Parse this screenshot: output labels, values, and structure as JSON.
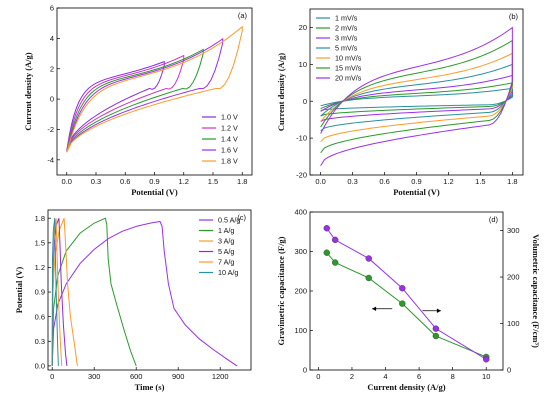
{
  "colors": {
    "purple": "#9b30e8",
    "green": "#2a9a2a",
    "orange": "#ff9a2a",
    "violet": "#8a2be2",
    "teal": "#2a8fa0",
    "magenta": "#cc33cc"
  },
  "chart_data": [
    {
      "panel": "a",
      "type": "line",
      "panel_label": "(a)",
      "xlabel": "Potential (V)",
      "ylabel": "Current density (A/g)",
      "xlim": [
        -0.1,
        1.9
      ],
      "ylim": [
        -5,
        6
      ],
      "xticks": [
        0.0,
        0.3,
        0.6,
        0.9,
        1.2,
        1.5,
        1.8
      ],
      "xtick_labels": [
        "0.0",
        "0.3",
        "0.6",
        "0.9",
        "1.2",
        "1.5",
        "1.8"
      ],
      "yticks": [
        -4,
        -2,
        0,
        2,
        4,
        6
      ],
      "ytick_labels": [
        "-4",
        "-2",
        "0",
        "2",
        "4",
        "6"
      ],
      "legend_position": "bottom-right",
      "series": [
        {
          "name": "1.0 V",
          "color": "#8a2be2",
          "vmax": 1.0,
          "imax": 2.6,
          "imin": -3.4
        },
        {
          "name": "1.2 V",
          "color": "#cc33cc",
          "vmax": 1.2,
          "imax": 3.0,
          "imin": -3.4
        },
        {
          "name": "1.4 V",
          "color": "#2a9a2a",
          "vmax": 1.4,
          "imax": 3.4,
          "imin": -3.45
        },
        {
          "name": "1.6 V",
          "color": "#9b30e8",
          "vmax": 1.6,
          "imax": 4.1,
          "imin": -3.5
        },
        {
          "name": "1.8 V",
          "color": "#ff9a2a",
          "vmax": 1.8,
          "imax": 4.9,
          "imin": -3.5
        }
      ]
    },
    {
      "panel": "b",
      "type": "line",
      "panel_label": "(b)",
      "xlabel": "Potential (V)",
      "ylabel": "Current density (A/g)",
      "xlim": [
        -0.1,
        1.9
      ],
      "ylim": [
        -20,
        25
      ],
      "xticks": [
        0.0,
        0.3,
        0.6,
        0.9,
        1.2,
        1.5,
        1.8
      ],
      "xtick_labels": [
        "0.0",
        "0.3",
        "0.6",
        "0.9",
        "1.2",
        "1.5",
        "1.8"
      ],
      "yticks": [
        -20,
        -10,
        0,
        10,
        20
      ],
      "ytick_labels": [
        "-20",
        "-10",
        "0",
        "10",
        "20"
      ],
      "legend_position": "top-left",
      "series": [
        {
          "name": "1 mV/s",
          "color": "#2a8fa0",
          "imax": 3.5,
          "imin": -2.5,
          "mid_upper": 1.2,
          "mid_lower": -1.2
        },
        {
          "name": "2 mV/s",
          "color": "#2a9a2a",
          "imax": 5.0,
          "imin": -4.0,
          "mid_upper": 1.8,
          "mid_lower": -1.8
        },
        {
          "name": "3 mV/s",
          "color": "#9b30e8",
          "imax": 7.0,
          "imin": -5.5,
          "mid_upper": 2.6,
          "mid_lower": -2.6
        },
        {
          "name": "5 mV/s",
          "color": "#2a8fa0",
          "imax": 10.0,
          "imin": -8.0,
          "mid_upper": 3.8,
          "mid_lower": -3.8
        },
        {
          "name": "10 mV/s",
          "color": "#ff9a2a",
          "imax": 13.0,
          "imin": -11.0,
          "mid_upper": 5.0,
          "mid_lower": -5.0
        },
        {
          "name": "15 mV/s",
          "color": "#2a9a2a",
          "imax": 16.5,
          "imin": -14.0,
          "mid_upper": 6.5,
          "mid_lower": -6.5
        },
        {
          "name": "20 mV/s",
          "color": "#9b30e8",
          "imax": 20.0,
          "imin": -17.5,
          "mid_upper": 8.0,
          "mid_lower": -8.0
        }
      ]
    },
    {
      "panel": "c",
      "type": "line",
      "panel_label": "(c)",
      "xlabel": "Time (s)",
      "ylabel": "Potential (V)",
      "xlim": [
        -30,
        1420
      ],
      "ylim": [
        -0.05,
        1.9
      ],
      "xticks": [
        0,
        300,
        600,
        900,
        1200
      ],
      "xtick_labels": [
        "0",
        "300",
        "600",
        "900",
        "1200"
      ],
      "yticks": [
        0.0,
        0.3,
        0.6,
        0.9,
        1.2,
        1.5,
        1.8
      ],
      "ytick_labels": [
        "0.0",
        "0.3",
        "0.6",
        "0.9",
        "1.2",
        "1.5",
        "1.8"
      ],
      "legend_position": "top-right",
      "series": [
        {
          "name": "0.5 A/g",
          "color": "#9b30e8",
          "points": [
            [
              0,
              0
            ],
            [
              10,
              0.45
            ],
            [
              40,
              0.75
            ],
            [
              100,
              1.0
            ],
            [
              200,
              1.25
            ],
            [
              300,
              1.42
            ],
            [
              400,
              1.55
            ],
            [
              500,
              1.64
            ],
            [
              600,
              1.7
            ],
            [
              700,
              1.74
            ],
            [
              770,
              1.76
            ],
            [
              785,
              1.7
            ],
            [
              800,
              1.4
            ],
            [
              830,
              1.0
            ],
            [
              870,
              0.7
            ],
            [
              950,
              0.5
            ],
            [
              1050,
              0.33
            ],
            [
              1150,
              0.2
            ],
            [
              1250,
              0.08
            ],
            [
              1320,
              0
            ]
          ]
        },
        {
          "name": "1 A/g",
          "color": "#2a9a2a",
          "points": [
            [
              0,
              0
            ],
            [
              10,
              0.7
            ],
            [
              40,
              1.1
            ],
            [
              100,
              1.4
            ],
            [
              200,
              1.62
            ],
            [
              300,
              1.74
            ],
            [
              380,
              1.8
            ],
            [
              390,
              1.72
            ],
            [
              400,
              1.3
            ],
            [
              420,
              1.0
            ],
            [
              460,
              0.75
            ],
            [
              520,
              0.4
            ],
            [
              560,
              0.18
            ],
            [
              600,
              0
            ]
          ]
        },
        {
          "name": "3 A/g",
          "color": "#ff9a2a",
          "points": [
            [
              0,
              0
            ],
            [
              5,
              0.9
            ],
            [
              20,
              1.35
            ],
            [
              50,
              1.65
            ],
            [
              85,
              1.8
            ],
            [
              95,
              1.5
            ],
            [
              110,
              1.0
            ],
            [
              130,
              0.6
            ],
            [
              160,
              0.25
            ],
            [
              180,
              0
            ]
          ]
        },
        {
          "name": "5 A/g",
          "color": "#8a2be2",
          "points": [
            [
              0,
              0
            ],
            [
              4,
              1.1
            ],
            [
              15,
              1.5
            ],
            [
              30,
              1.72
            ],
            [
              48,
              1.8
            ],
            [
              55,
              1.5
            ],
            [
              65,
              1.0
            ],
            [
              80,
              0.5
            ],
            [
              95,
              0.15
            ],
            [
              105,
              0
            ]
          ]
        },
        {
          "name": "7 A/g",
          "color": "#ff9a2a",
          "points": [
            [
              0,
              0
            ],
            [
              3,
              1.2
            ],
            [
              12,
              1.6
            ],
            [
              28,
              1.8
            ],
            [
              34,
              1.4
            ],
            [
              45,
              0.8
            ],
            [
              58,
              0.3
            ],
            [
              68,
              0
            ]
          ]
        },
        {
          "name": "10 A/g",
          "color": "#2a8fa0",
          "points": [
            [
              0,
              0
            ],
            [
              2,
              1.3
            ],
            [
              8,
              1.65
            ],
            [
              18,
              1.8
            ],
            [
              22,
              1.4
            ],
            [
              30,
              0.8
            ],
            [
              38,
              0.3
            ],
            [
              44,
              0
            ]
          ]
        }
      ]
    },
    {
      "panel": "d",
      "type": "scatter",
      "panel_label": "(d)",
      "xlabel": "Current density (A/g)",
      "ylabel": "Gravimetric capacitance (F/g)",
      "y2label": "Volumetric capacitance (F/cm³)",
      "xlim": [
        -0.5,
        11
      ],
      "ylim": [
        0,
        400
      ],
      "y2lim": [
        0,
        340
      ],
      "xticks": [
        0,
        2,
        4,
        6,
        8,
        10
      ],
      "xtick_labels": [
        "0",
        "2",
        "4",
        "6",
        "8",
        "10"
      ],
      "yticks": [
        0,
        100,
        200,
        300,
        400
      ],
      "ytick_labels": [
        "0",
        "100",
        "200",
        "300",
        "400"
      ],
      "y2ticks": [
        0,
        100,
        200,
        300
      ],
      "y2tick_labels": [
        "0",
        "100",
        "200",
        "300"
      ],
      "x": [
        0.5,
        1,
        3,
        5,
        7,
        10
      ],
      "series": [
        {
          "axis": "left",
          "color": "#2a9a2a",
          "values": [
            297,
            272,
            233,
            168,
            86,
            33
          ]
        },
        {
          "axis": "right",
          "color": "#9b30e8",
          "values": [
            305,
            280,
            240,
            176,
            89,
            23
          ]
        }
      ]
    }
  ]
}
